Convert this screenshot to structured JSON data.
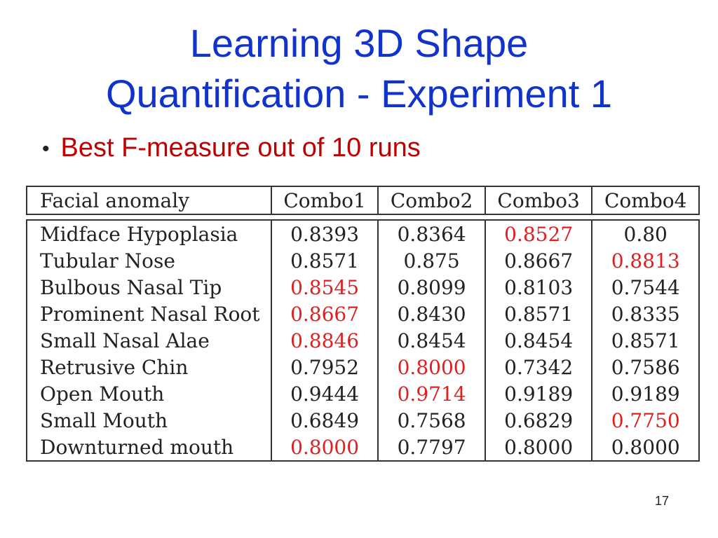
{
  "slide": {
    "title_line1": "Learning 3D Shape",
    "title_line2": "Quantification - Experiment 1",
    "bullet": "Best F-measure out of 10 runs",
    "page_number": "17"
  },
  "table": {
    "columns": [
      "Facial anomaly",
      "Combo1",
      "Combo2",
      "Combo3",
      "Combo4"
    ],
    "rows": [
      {
        "label": "Midface Hypoplasia",
        "values": [
          "0.8393",
          "0.8364",
          "0.8527",
          "0.80"
        ],
        "best": 2
      },
      {
        "label": "Tubular Nose",
        "values": [
          "0.8571",
          "0.875",
          "0.8667",
          "0.8813"
        ],
        "best": 3
      },
      {
        "label": "Bulbous Nasal Tip",
        "values": [
          "0.8545",
          "0.8099",
          "0.8103",
          "0.7544"
        ],
        "best": 0
      },
      {
        "label": "Prominent Nasal Root",
        "values": [
          "0.8667",
          "0.8430",
          "0.8571",
          "0.8335"
        ],
        "best": 0
      },
      {
        "label": "Small Nasal Alae",
        "values": [
          "0.8846",
          "0.8454",
          "0.8454",
          "0.8571"
        ],
        "best": 0
      },
      {
        "label": "Retrusive Chin",
        "values": [
          "0.7952",
          "0.8000",
          "0.7342",
          "0.7586"
        ],
        "best": 1
      },
      {
        "label": "Open Mouth",
        "values": [
          "0.9444",
          "0.9714",
          "0.9189",
          "0.9189"
        ],
        "best": 1
      },
      {
        "label": "Small Mouth",
        "values": [
          "0.6849",
          "0.7568",
          "0.6829",
          "0.7750"
        ],
        "best": 3
      },
      {
        "label": "Downturned mouth",
        "values": [
          "0.8000",
          "0.7797",
          "0.8000",
          "0.8000"
        ],
        "best": 0
      }
    ]
  },
  "colors": {
    "title": "#1133cc",
    "bullet_text": "#c00000",
    "highlight": "#e02020",
    "text": "#222222"
  }
}
